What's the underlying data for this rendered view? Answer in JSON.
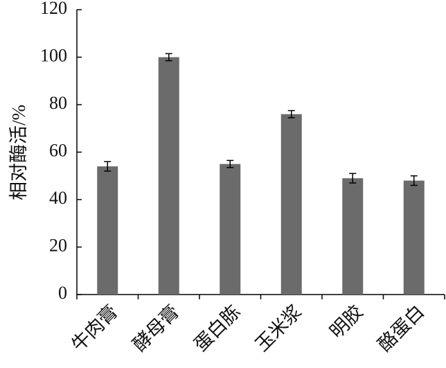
{
  "chart_data": {
    "type": "bar",
    "ylabel": "相对酶活/%",
    "categories": [
      "牛肉膏",
      "酵母膏",
      "蛋白胨",
      "玉米浆",
      "明胶",
      "酪蛋白"
    ],
    "values": [
      54,
      100,
      55,
      76,
      49,
      48
    ],
    "errors": [
      2,
      1.5,
      1.5,
      1.5,
      2,
      2
    ],
    "color": "#6b6b6b",
    "ylim": [
      0,
      120
    ],
    "yticks": [
      0,
      20,
      40,
      60,
      80,
      100,
      120
    ]
  }
}
